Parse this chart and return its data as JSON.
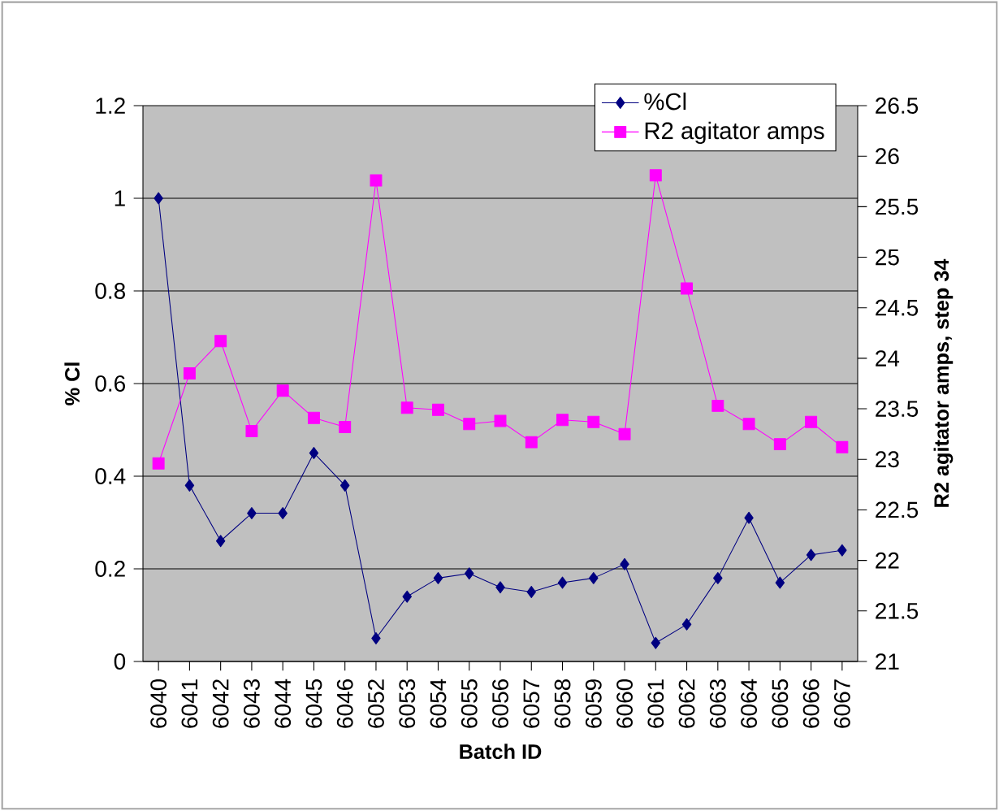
{
  "chart_data": {
    "type": "line",
    "xlabel": "Batch ID",
    "ylabel": "% Cl",
    "y2label": "R2 agitator amps, step 34",
    "categories": [
      "6040",
      "6041",
      "6042",
      "6043",
      "6044",
      "6045",
      "6046",
      "6052",
      "6053",
      "6054",
      "6055",
      "6056",
      "6057",
      "6058",
      "6059",
      "6060",
      "6061",
      "6062",
      "6063",
      "6064",
      "6065",
      "6066",
      "6067"
    ],
    "series": [
      {
        "name": "%Cl",
        "color": "#000080",
        "marker": "diamond",
        "values": [
          1.0,
          0.38,
          0.26,
          0.32,
          0.32,
          0.45,
          0.38,
          0.05,
          0.14,
          0.18,
          0.19,
          0.16,
          0.15,
          0.17,
          0.18,
          0.21,
          0.04,
          0.08,
          0.18,
          0.31,
          0.17,
          0.23,
          0.24
        ]
      },
      {
        "name": "R2 agitator amps",
        "color": "#ff00ff",
        "marker": "square",
        "axis": "y2",
        "values": [
          22.96,
          23.85,
          24.17,
          23.28,
          23.68,
          23.41,
          23.32,
          25.76,
          23.51,
          23.49,
          23.35,
          23.38,
          23.17,
          23.39,
          23.37,
          23.25,
          25.81,
          24.69,
          23.53,
          23.35,
          23.15,
          23.37,
          23.12
        ]
      }
    ],
    "ylim": [
      0,
      1.2
    ],
    "yticks": [
      0,
      0.2,
      0.4,
      0.6,
      0.8,
      1,
      1.2
    ],
    "y2lim": [
      21,
      26.5
    ],
    "y2ticks": [
      21,
      21.5,
      22,
      22.5,
      23,
      23.5,
      24,
      24.5,
      25,
      25.5,
      26,
      26.5
    ],
    "grid": "y",
    "legend": "top right"
  }
}
